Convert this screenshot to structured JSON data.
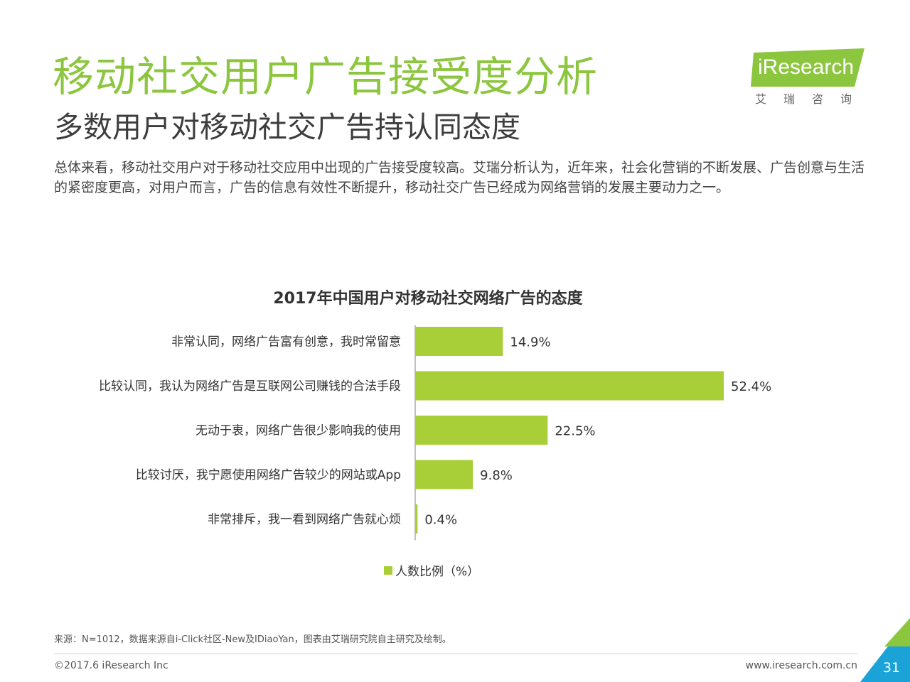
{
  "header": {
    "title": "移动社交用户广告接受度分析",
    "subtitle": "多数用户对移动社交广告持认同态度",
    "description": "总体来看，移动社交用户对于移动社交应用中出现的广告接受度较高。艾瑞分析认为，近年来，社会化营销的不断发展、广告创意与生活的紧密度更高，对用户而言，广告的信息有效性不断提升，移动社交广告已经成为网络营销的发展主要动力之一。"
  },
  "logo": {
    "word": "iResearch",
    "cn": "艾瑞咨询"
  },
  "chart_data": {
    "type": "bar",
    "orientation": "horizontal",
    "title": "2017年中国用户对移动社交网络广告的态度",
    "categories": [
      "非常认同，网络广告富有创意，我时常留意",
      "比较认同，我认为网络广告是互联网公司赚钱的合法手段",
      "无动于衷，网络广告很少影响我的使用",
      "比较讨厌，我宁愿使用网络广告较少的网站或App",
      "非常排斥，我一看到网络广告就心烦"
    ],
    "series": [
      {
        "name": "人数比例（%）",
        "values": [
          14.9,
          52.4,
          22.5,
          9.8,
          0.4
        ],
        "labels": [
          "14.9%",
          "52.4%",
          "22.5%",
          "9.8%",
          "0.4%"
        ]
      }
    ],
    "xlim": [
      0,
      60
    ],
    "bar_color": "#a9cf38",
    "legend_position": "bottom",
    "grid": false
  },
  "footer": {
    "source": "来源：N=1012，数据来源自i-Click社区-New及IDiaoYan，图表由艾瑞研究院自主研究及绘制。",
    "copyright": "©2017.6 iResearch Inc",
    "website": "www.iresearch.com.cn",
    "page": "31"
  },
  "colors": {
    "accent_green": "#8cc63f",
    "bar_green": "#a9cf38",
    "corner_blue": "#1ba3d8"
  }
}
